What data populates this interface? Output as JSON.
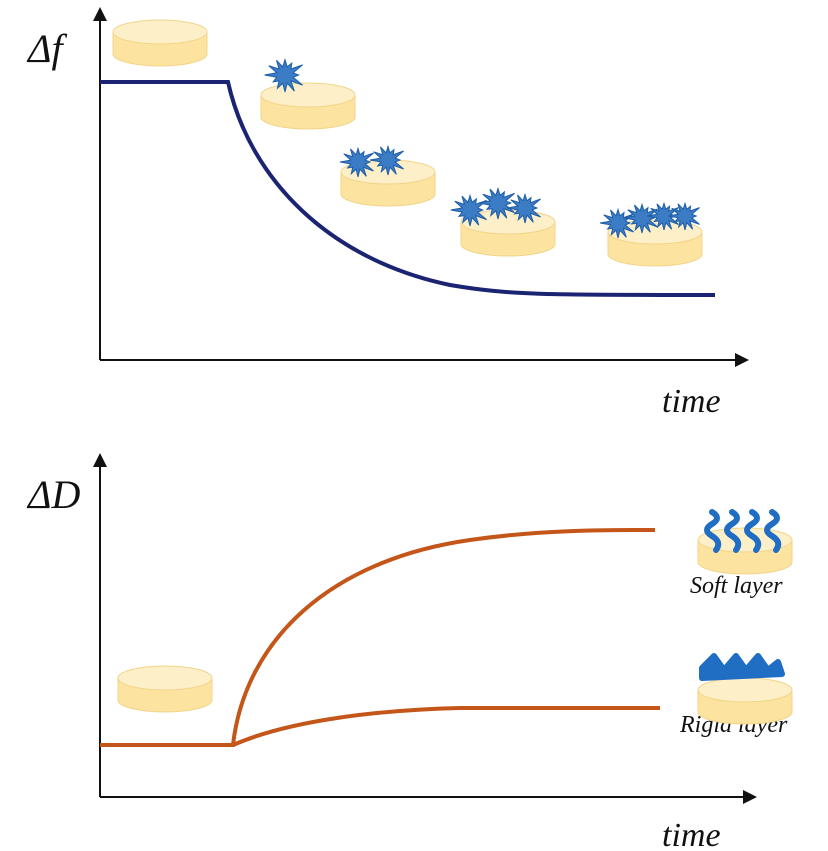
{
  "top_panel": {
    "y_label": "Δf",
    "x_label": "time"
  },
  "bottom_panel": {
    "y_label": "ΔD",
    "x_label": "time",
    "annotations": [
      "Soft layer",
      "Rigid layer"
    ]
  }
}
